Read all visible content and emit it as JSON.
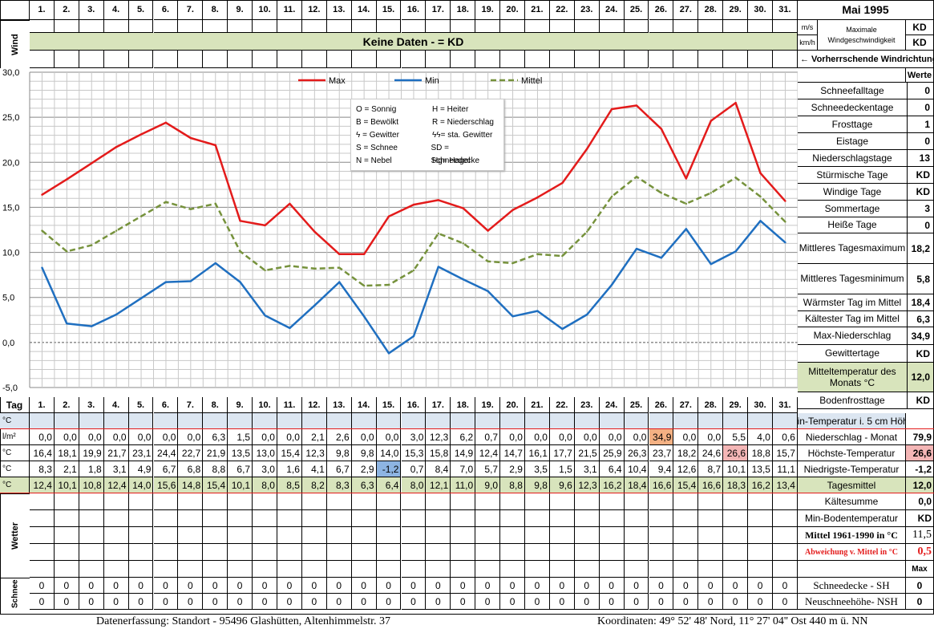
{
  "header": {
    "title": "Mai 1995",
    "days": [
      "1.",
      "2.",
      "3.",
      "4.",
      "5.",
      "6.",
      "7.",
      "8.",
      "9.",
      "10.",
      "11.",
      "12.",
      "13.",
      "14.",
      "15.",
      "16.",
      "17.",
      "18.",
      "19.",
      "20.",
      "21.",
      "22.",
      "23.",
      "24.",
      "25.",
      "26.",
      "27.",
      "28.",
      "29.",
      "30.",
      "31."
    ],
    "unit_ms": "m/s",
    "unit_kmh": "km/h",
    "max_wind_label": "Maximale Windgeschwindigkeit",
    "max_wind_ms": "KD",
    "max_wind_kmh": "KD",
    "wind_label": "Wind",
    "no_data": "Keine Daten -  = KD",
    "prevailing_wind": "← Vorherrschende Windrichtung",
    "werte": "Werte"
  },
  "legend": {
    "max": "Max",
    "min": "Min",
    "mean": "Mittel",
    "symbols": [
      [
        "O = Sonnig",
        "H = Heiter"
      ],
      [
        "B = Bewölkt",
        "R = Niederschlag"
      ],
      [
        "ϟ = Gewitter",
        "ϟϟ= sta. Gewitter"
      ],
      [
        "S = Schnee",
        "SD = Schneedecke"
      ],
      [
        "N = Nebel",
        "Hg= Hagel"
      ]
    ]
  },
  "colors": {
    "max": "#e31b1b",
    "min": "#1f6fc0",
    "mean": "#76923c",
    "green": "#d8e4bc",
    "blue": "#dce6f1",
    "orange": "#f4b183",
    "pink": "#f4b6b6",
    "lightblue": "#8db4e2"
  },
  "chart_data": {
    "type": "line",
    "x": [
      1,
      2,
      3,
      4,
      5,
      6,
      7,
      8,
      9,
      10,
      11,
      12,
      13,
      14,
      15,
      16,
      17,
      18,
      19,
      20,
      21,
      22,
      23,
      24,
      25,
      26,
      27,
      28,
      29,
      30,
      31
    ],
    "ylim": [
      -5,
      30
    ],
    "yticks": [
      "30,0",
      "25,0",
      "20,0",
      "15,0",
      "10,0",
      "5,0",
      "0,0",
      "-5,0"
    ],
    "grid": true,
    "legend_position": "top",
    "series": [
      {
        "name": "Max",
        "values": [
          16.4,
          18.1,
          19.9,
          21.7,
          23.1,
          24.4,
          22.7,
          21.9,
          13.5,
          13.0,
          15.4,
          12.3,
          9.8,
          9.8,
          14.0,
          15.3,
          15.8,
          14.9,
          12.4,
          14.7,
          16.1,
          17.7,
          21.5,
          25.9,
          26.3,
          23.7,
          18.2,
          24.6,
          26.6,
          18.8,
          15.7
        ]
      },
      {
        "name": "Min",
        "values": [
          8.3,
          2.1,
          1.8,
          3.1,
          4.9,
          6.7,
          6.8,
          8.8,
          6.7,
          3.0,
          1.6,
          4.1,
          6.7,
          2.9,
          -1.2,
          0.7,
          8.4,
          7.0,
          5.7,
          2.9,
          3.5,
          1.5,
          3.1,
          6.4,
          10.4,
          9.4,
          12.6,
          8.7,
          10.1,
          13.5,
          11.1
        ]
      },
      {
        "name": "Mittel",
        "values": [
          12.4,
          10.1,
          10.8,
          12.4,
          14.0,
          15.6,
          14.8,
          15.4,
          10.1,
          8.0,
          8.5,
          8.2,
          8.3,
          6.3,
          6.4,
          8.0,
          12.1,
          11.0,
          9.0,
          8.8,
          9.8,
          9.6,
          12.3,
          16.2,
          18.4,
          16.6,
          15.4,
          16.6,
          18.3,
          16.2,
          13.4
        ]
      }
    ]
  },
  "table": {
    "tag_label": "Tag",
    "rows": [
      {
        "unit": "°C",
        "values": [
          "",
          "",
          "",
          "",
          "",
          "",
          "",
          "",
          "",
          "",
          "",
          "",
          "",
          "",
          "",
          "",
          "",
          "",
          "",
          "",
          "",
          "",
          "",
          "",
          "",
          "",
          "",
          "",
          "",
          "",
          ""
        ],
        "label": "Min-Temperatur i. 5 cm Höhe",
        "total": ""
      },
      {
        "unit": "l/m²",
        "values": [
          "0,0",
          "0,0",
          "0,0",
          "0,0",
          "0,0",
          "0,0",
          "0,0",
          "6,3",
          "1,5",
          "0,0",
          "0,0",
          "2,1",
          "2,6",
          "0,0",
          "0,0",
          "3,0",
          "12,3",
          "6,2",
          "0,7",
          "0,0",
          "0,0",
          "0,0",
          "0,0",
          "0,0",
          "0,0",
          "34,9",
          "0,0",
          "0,0",
          "5,5",
          "4,0",
          "0,6"
        ],
        "label": "Niederschlag - Monat",
        "total": "79,9"
      },
      {
        "unit": "°C",
        "values": [
          "16,4",
          "18,1",
          "19,9",
          "21,7",
          "23,1",
          "24,4",
          "22,7",
          "21,9",
          "13,5",
          "13,0",
          "15,4",
          "12,3",
          "9,8",
          "9,8",
          "14,0",
          "15,3",
          "15,8",
          "14,9",
          "12,4",
          "14,7",
          "16,1",
          "17,7",
          "21,5",
          "25,9",
          "26,3",
          "23,7",
          "18,2",
          "24,6",
          "26,6",
          "18,8",
          "15,7"
        ],
        "label": "Höchste-Temperatur",
        "total": "26,6"
      },
      {
        "unit": "°C",
        "values": [
          "8,3",
          "2,1",
          "1,8",
          "3,1",
          "4,9",
          "6,7",
          "6,8",
          "8,8",
          "6,7",
          "3,0",
          "1,6",
          "4,1",
          "6,7",
          "2,9",
          "-1,2",
          "0,7",
          "8,4",
          "7,0",
          "5,7",
          "2,9",
          "3,5",
          "1,5",
          "3,1",
          "6,4",
          "10,4",
          "9,4",
          "12,6",
          "8,7",
          "10,1",
          "13,5",
          "11,1"
        ],
        "label": "Niedrigste-Temperatur",
        "total": "-1,2"
      },
      {
        "unit": "°C",
        "values": [
          "12,4",
          "10,1",
          "10,8",
          "12,4",
          "14,0",
          "15,6",
          "14,8",
          "15,4",
          "10,1",
          "8,0",
          "8,5",
          "8,2",
          "8,3",
          "6,3",
          "6,4",
          "8,0",
          "12,1",
          "11,0",
          "9,0",
          "8,8",
          "9,8",
          "9,6",
          "12,3",
          "16,2",
          "18,4",
          "16,6",
          "15,4",
          "16,6",
          "18,3",
          "16,2",
          "13,4"
        ],
        "label": "Tagesmittel",
        "total": "12,0"
      }
    ],
    "wetter_label": "Wetter",
    "schnee_label": "Schnee",
    "snow_rows": [
      {
        "values": [
          "0",
          "0",
          "0",
          "0",
          "0",
          "0",
          "0",
          "0",
          "0",
          "0",
          "0",
          "0",
          "0",
          "0",
          "0",
          "0",
          "0",
          "0",
          "0",
          "0",
          "0",
          "0",
          "0",
          "0",
          "0",
          "0",
          "0",
          "0",
          "0",
          "0",
          "0"
        ],
        "label": "Schneedecke -   SH",
        "total": "0"
      },
      {
        "values": [
          "0",
          "0",
          "0",
          "0",
          "0",
          "0",
          "0",
          "0",
          "0",
          "0",
          "0",
          "0",
          "0",
          "0",
          "0",
          "0",
          "0",
          "0",
          "0",
          "0",
          "0",
          "0",
          "0",
          "0",
          "0",
          "0",
          "0",
          "0",
          "0",
          "0",
          "0"
        ],
        "label": "Neuschneehöhe- NSH",
        "total": "0"
      }
    ]
  },
  "right_panel": [
    {
      "label": "Schneefalltage",
      "value": "0"
    },
    {
      "label": "Schneedeckentage",
      "value": "0"
    },
    {
      "label": "Frosttage",
      "value": "1"
    },
    {
      "label": "Eistage",
      "value": "0"
    },
    {
      "label": "Niederschlagstage",
      "value": "13"
    },
    {
      "label": "Stürmische Tage",
      "value": "KD"
    },
    {
      "label": "Windige Tage",
      "value": "KD"
    },
    {
      "label": "Sommertage",
      "value": "3"
    },
    {
      "label": "Heiße Tage",
      "value": "0"
    },
    {
      "label": "Mittleres Tagesmaximum",
      "value": "18,2"
    },
    {
      "label": "Mittleres Tagesminimum",
      "value": "5,8"
    },
    {
      "label": "Wärmster Tag im Mittel",
      "value": "18,4"
    },
    {
      "label": "Kältester Tag im Mittel",
      "value": "6,3"
    },
    {
      "label": "Max-Niederschlag",
      "value": "34,9"
    },
    {
      "label": "Gewittertage",
      "value": "KD"
    },
    {
      "label": "Mitteltemperatur des Monats °C",
      "value": "12,0"
    },
    {
      "label": "Bodenfrosttage",
      "value": "KD"
    }
  ],
  "lower_panel": {
    "kaeltesumme": "Kältesumme",
    "kaeltesumme_v": "0,0",
    "minboden": "Min-Bodentemperatur",
    "minboden_v": "KD",
    "mittel": "Mittel 1961-1990 in °C",
    "mittel_v": "11,5",
    "abw": "Abweichung v. Mittel in °C",
    "abw_v": "0,5",
    "max": "Max"
  },
  "footer": {
    "left": "Datenerfassung:  Standort -   95496  Glashütten, Altenhimmelstr. 37",
    "right": "Koordinaten:  49° 52' 48' Nord,  11° 27' 04'' Ost   440 m ü. NN"
  }
}
